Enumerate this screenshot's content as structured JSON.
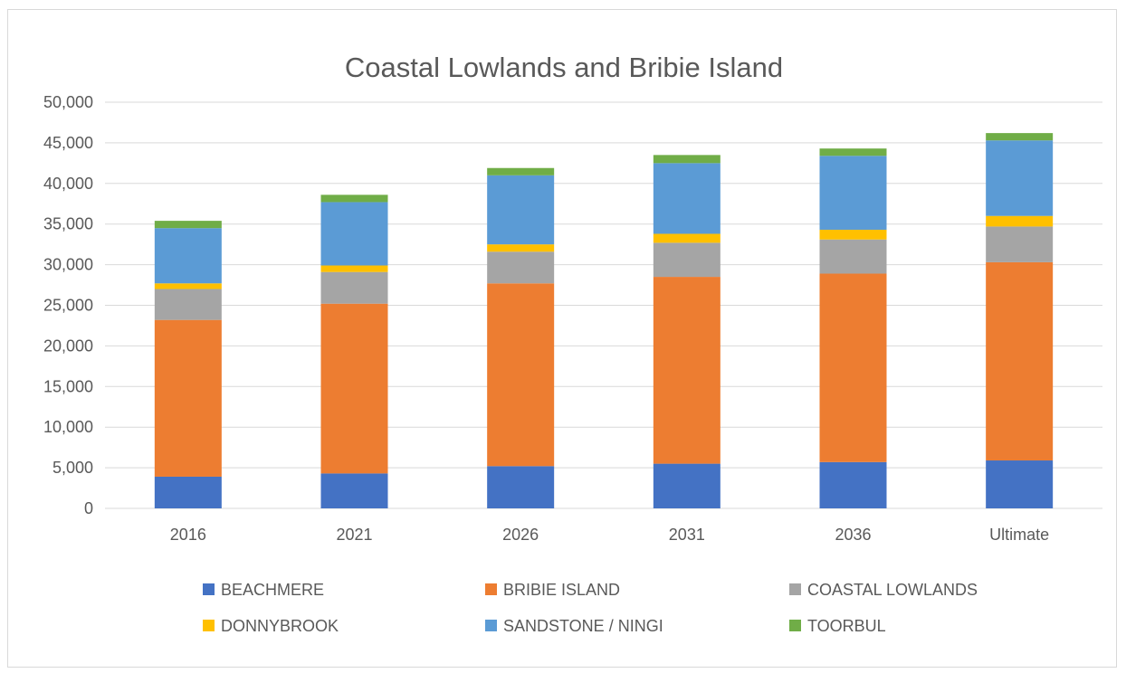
{
  "chart_data": {
    "type": "bar",
    "stacked": true,
    "title": "Coastal Lowlands and Bribie Island",
    "xlabel": "",
    "ylabel": "",
    "categories": [
      "2016",
      "2021",
      "2026",
      "2031",
      "2036",
      "Ultimate"
    ],
    "ylim": [
      0,
      50000
    ],
    "yticks": [
      {
        "value": 0,
        "label": "0"
      },
      {
        "value": 5000,
        "label": "5,000"
      },
      {
        "value": 10000,
        "label": "10,000"
      },
      {
        "value": 15000,
        "label": "15,000"
      },
      {
        "value": 20000,
        "label": "20,000"
      },
      {
        "value": 25000,
        "label": "25,000"
      },
      {
        "value": 30000,
        "label": "30,000"
      },
      {
        "value": 35000,
        "label": "35,000"
      },
      {
        "value": 40000,
        "label": "40,000"
      },
      {
        "value": 45000,
        "label": "45,000"
      },
      {
        "value": 50000,
        "label": "50,000"
      }
    ],
    "grid": true,
    "legend_position": "bottom",
    "series": [
      {
        "name": "BEACHMERE",
        "color": "#4472c4",
        "values": [
          3900,
          4300,
          5200,
          5500,
          5700,
          5900
        ]
      },
      {
        "name": "BRIBIE ISLAND",
        "color": "#ed7d31",
        "values": [
          19300,
          20900,
          22500,
          23000,
          23200,
          24400
        ]
      },
      {
        "name": "COASTAL LOWLANDS",
        "color": "#a5a5a5",
        "values": [
          3800,
          3900,
          3900,
          4200,
          4200,
          4400
        ]
      },
      {
        "name": "DONNYBROOK",
        "color": "#ffc000",
        "values": [
          700,
          800,
          900,
          1100,
          1200,
          1300
        ]
      },
      {
        "name": "SANDSTONE / NINGI",
        "color": "#5b9bd5",
        "values": [
          6800,
          7800,
          8500,
          8700,
          9100,
          9300
        ]
      },
      {
        "name": "TOORBUL",
        "color": "#70ad47",
        "values": [
          900,
          900,
          900,
          1000,
          900,
          900
        ]
      }
    ]
  }
}
